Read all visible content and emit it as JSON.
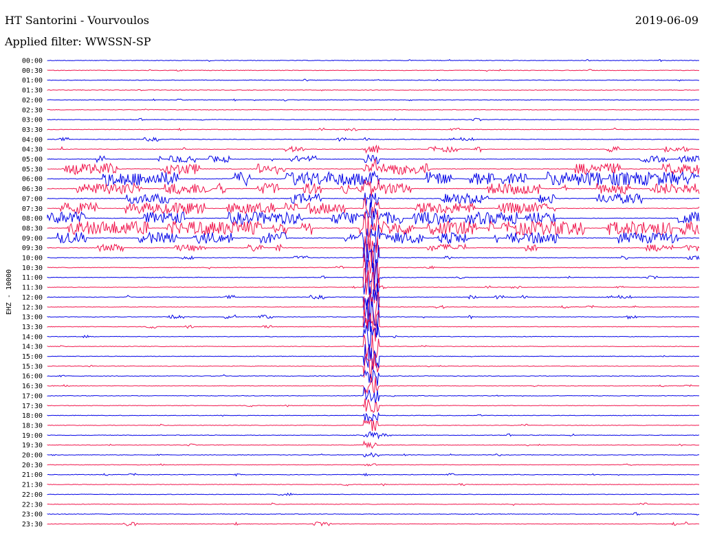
{
  "header": {
    "title": "HT Santorini - Vourvoulos",
    "filter": "Applied filter: WWSSN-SP",
    "date": "2019-06-09"
  },
  "colors": {
    "blue": "#0000e6",
    "red": "#f0144b",
    "background": "#ffffff"
  },
  "chart_data": {
    "type": "line",
    "title": "HT Santorini - Vourvoulos",
    "ylabel": "EHZ - 10000",
    "categories": [
      "00:00",
      "00:30",
      "01:00",
      "01:30",
      "02:00",
      "02:30",
      "03:00",
      "03:30",
      "04:00",
      "04:30",
      "05:00",
      "05:30",
      "06:00",
      "06:30",
      "07:00",
      "07:30",
      "08:00",
      "08:30",
      "09:00",
      "09:30",
      "10:00",
      "10:30",
      "11:00",
      "11:30",
      "12:00",
      "12:30",
      "13:00",
      "13:30",
      "14:00",
      "14:30",
      "15:00",
      "15:30",
      "16:00",
      "16:30",
      "17:00",
      "17:30",
      "18:00",
      "18:30",
      "19:00",
      "19:30",
      "20:00",
      "20:30",
      "21:00",
      "21:30",
      "22:00",
      "22:30",
      "23:00",
      "23:30"
    ],
    "noise_level": [
      0.25,
      0.3,
      0.25,
      0.2,
      0.3,
      0.2,
      0.5,
      0.6,
      0.8,
      1.5,
      1.8,
      3.5,
      4.5,
      3.5,
      3.0,
      3.5,
      4.0,
      4.5,
      3.5,
      2.0,
      0.8,
      0.6,
      0.6,
      0.5,
      0.8,
      0.6,
      0.9,
      0.6,
      0.4,
      0.3,
      0.3,
      0.2,
      0.4,
      0.3,
      0.2,
      0.3,
      0.2,
      0.4,
      0.6,
      0.4,
      0.2,
      0.2,
      0.4,
      0.4,
      0.4,
      0.5,
      0.8,
      1.0
    ],
    "series": [
      {
        "color": "blue",
        "rows": "even"
      },
      {
        "color": "red",
        "rows": "odd"
      }
    ],
    "grid": false,
    "legend": "none"
  }
}
